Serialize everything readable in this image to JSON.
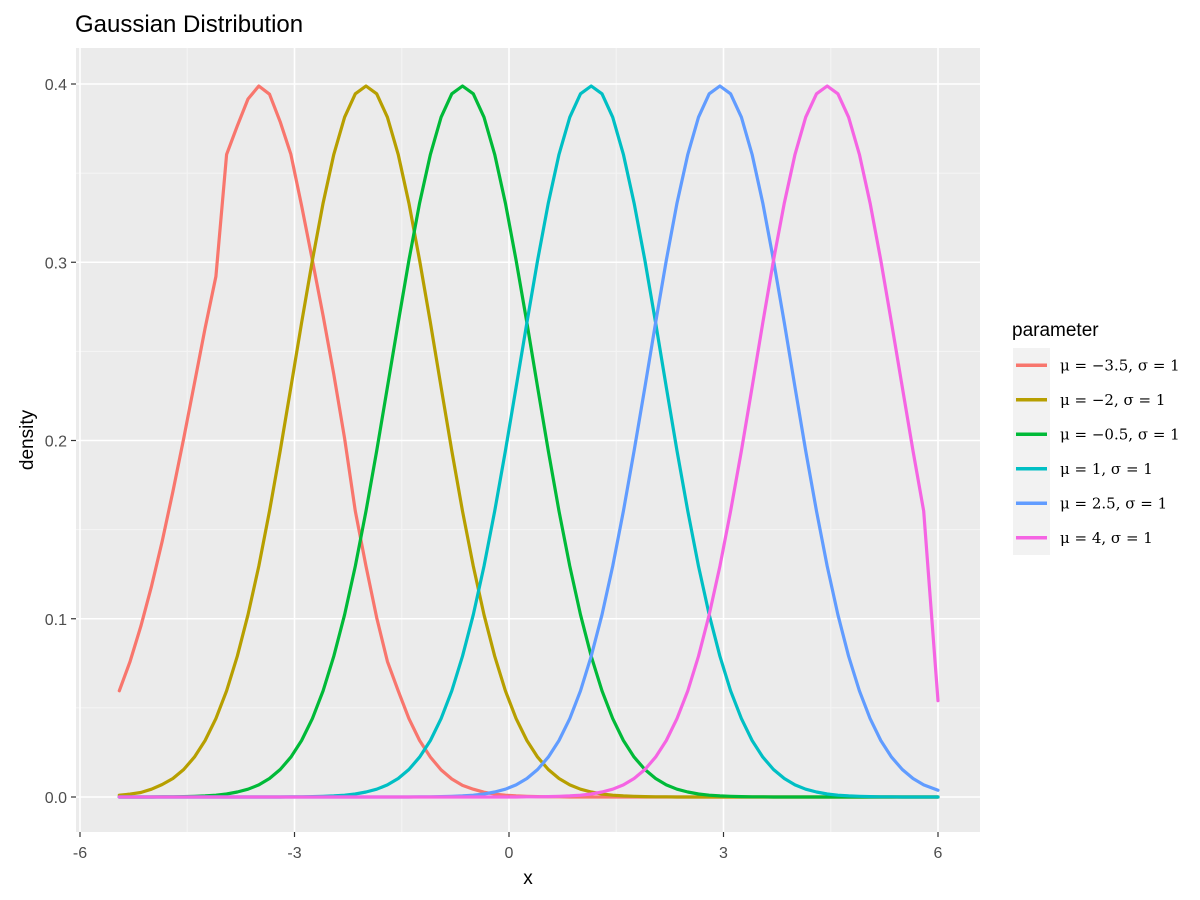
{
  "chart_data": {
    "type": "line",
    "title": "Gaussian Distribution",
    "xlabel": "x",
    "ylabel": "density",
    "xlim": [
      -5.45,
      6
    ],
    "ylim": [
      0,
      0.4
    ],
    "x_ticks": [
      -6,
      -3,
      0,
      3,
      6
    ],
    "x_tick_labels": [
      "-6",
      "-3",
      "0",
      "3",
      "6"
    ],
    "y_ticks": [
      0.0,
      0.1,
      0.2,
      0.3,
      0.4
    ],
    "y_tick_labels": [
      "0.0",
      "0.1",
      "0.2",
      "0.3",
      "0.4"
    ],
    "grid": true,
    "legend_position": "right",
    "legend_title": "parameter",
    "x": [
      -5.45,
      -5.3,
      -5.15,
      -5.0,
      -4.85,
      -4.7,
      -4.55,
      -4.4,
      -4.25,
      -4.1,
      -3.95,
      -3.8,
      -3.65,
      -3.5,
      -3.35,
      -3.2,
      -3.05,
      -2.9,
      -2.75,
      -2.6,
      -2.45,
      -2.3,
      -2.15,
      -2.0,
      -1.85,
      -1.7,
      -1.55,
      -1.4,
      -1.25,
      -1.1,
      -0.95,
      -0.8,
      -0.65,
      -0.5,
      -0.35,
      -0.2,
      -0.05,
      0.1,
      0.25,
      0.4,
      0.55,
      0.7,
      0.85,
      1.0,
      1.15,
      1.3,
      1.45,
      1.6,
      1.75,
      1.9,
      2.05,
      2.2,
      2.35,
      2.5,
      2.65,
      2.8,
      2.95,
      3.1,
      3.25,
      3.4,
      3.55,
      3.7,
      3.85,
      4.0,
      4.15,
      4.3,
      4.45,
      4.6,
      4.75,
      4.9,
      5.05,
      5.2,
      5.35,
      5.5,
      5.65,
      5.8,
      6.0
    ],
    "series": [
      {
        "name": "μ = −3.5, σ = 1",
        "color": "#F8766D",
        "values": [
          0.0596,
          0.0761,
          0.0957,
          0.1182,
          0.1435,
          0.1714,
          0.2012,
          0.232,
          0.263,
          0.292,
          0.3605,
          0.3765,
          0.3916,
          0.3989,
          0.3943,
          0.3788,
          0.3605,
          0.3317,
          0.3011,
          0.27,
          0.2371,
          0.2012,
          0.1604,
          0.1295,
          0.1006,
          0.0761,
          0.0596,
          0.044,
          0.0317,
          0.0224,
          0.0152,
          0.0101,
          0.0065,
          0.0044,
          0.0027,
          0.0016,
          0.001,
          0.0006,
          0.0004,
          0.0002,
          0.0001,
          0.0001,
          0.0,
          0.0,
          0.0,
          0.0,
          0.0,
          0.0,
          0.0,
          0.0,
          0.0,
          0.0,
          0.0,
          0.0,
          0.0,
          0.0,
          0.0,
          0.0,
          0.0,
          0.0,
          0.0,
          0.0,
          0.0,
          0.0,
          0.0,
          0.0,
          0.0,
          0.0,
          0.0,
          0.0,
          0.0,
          0.0,
          0.0,
          0.0,
          0.0,
          0.0,
          0.0
        ]
      },
      {
        "name": "μ = −2, σ = 1",
        "color": "#B79F00",
        "values": [
          0.001,
          0.0016,
          0.0025,
          0.0044,
          0.007,
          0.0104,
          0.0154,
          0.0224,
          0.0317,
          0.044,
          0.0596,
          0.079,
          0.1023,
          0.1295,
          0.1604,
          0.1942,
          0.2299,
          0.2661,
          0.3011,
          0.3332,
          0.3605,
          0.3814,
          0.3945,
          0.3989,
          0.3945,
          0.3814,
          0.3605,
          0.3332,
          0.3011,
          0.2661,
          0.2299,
          0.1942,
          0.1604,
          0.1295,
          0.1023,
          0.079,
          0.0596,
          0.044,
          0.0317,
          0.0224,
          0.0154,
          0.0104,
          0.0068,
          0.0044,
          0.0028,
          0.0017,
          0.001,
          0.0006,
          0.0004,
          0.0002,
          0.0001,
          0.0001,
          0.0,
          0.0,
          0.0,
          0.0,
          0.0,
          0.0,
          0.0,
          0.0,
          0.0,
          0.0,
          0.0,
          0.0,
          0.0,
          0.0,
          0.0,
          0.0,
          0.0,
          0.0,
          0.0,
          0.0,
          0.0,
          0.0,
          0.0,
          0.0,
          0.0
        ]
      },
      {
        "name": "μ = −0.5, σ = 1",
        "color": "#00BA38",
        "values": [
          0.0,
          0.0,
          0.0,
          0.0,
          0.0001,
          0.0001,
          0.0002,
          0.0004,
          0.0006,
          0.001,
          0.0017,
          0.0028,
          0.0044,
          0.0068,
          0.0104,
          0.0154,
          0.0224,
          0.0317,
          0.044,
          0.0596,
          0.079,
          0.1023,
          0.1295,
          0.1604,
          0.1942,
          0.2299,
          0.2661,
          0.3011,
          0.3332,
          0.3605,
          0.3814,
          0.3945,
          0.3989,
          0.3945,
          0.3814,
          0.3605,
          0.3332,
          0.3011,
          0.2661,
          0.2299,
          0.1942,
          0.1604,
          0.1295,
          0.1023,
          0.079,
          0.0596,
          0.044,
          0.0317,
          0.0224,
          0.0154,
          0.0104,
          0.0068,
          0.0044,
          0.0028,
          0.0017,
          0.001,
          0.0006,
          0.0004,
          0.0002,
          0.0001,
          0.0001,
          0.0,
          0.0,
          0.0,
          0.0,
          0.0,
          0.0,
          0.0,
          0.0,
          0.0,
          0.0,
          0.0,
          0.0,
          0.0,
          0.0,
          0.0,
          0.0
        ]
      },
      {
        "name": "μ = 1, σ = 1",
        "color": "#00BFC4",
        "values": [
          0.0,
          0.0,
          0.0,
          0.0,
          0.0,
          0.0,
          0.0,
          0.0,
          0.0,
          0.0,
          0.0,
          0.0,
          0.0,
          0.0,
          0.0,
          0.0,
          0.0001,
          0.0001,
          0.0002,
          0.0004,
          0.0006,
          0.001,
          0.0017,
          0.0028,
          0.0044,
          0.0068,
          0.0104,
          0.0154,
          0.0224,
          0.0317,
          0.044,
          0.0596,
          0.079,
          0.1023,
          0.1295,
          0.1604,
          0.1942,
          0.2299,
          0.2661,
          0.3011,
          0.3332,
          0.3605,
          0.3814,
          0.3945,
          0.3989,
          0.3945,
          0.3814,
          0.3605,
          0.3332,
          0.3011,
          0.2661,
          0.2299,
          0.1942,
          0.1604,
          0.1295,
          0.1023,
          0.079,
          0.0596,
          0.044,
          0.0317,
          0.0224,
          0.0154,
          0.0104,
          0.0068,
          0.0044,
          0.0028,
          0.0017,
          0.001,
          0.0006,
          0.0004,
          0.0002,
          0.0001,
          0.0001,
          0.0,
          0.0,
          0.0,
          0.0
        ]
      },
      {
        "name": "μ = 2.5, σ = 1",
        "color": "#619CFF",
        "values": [
          0.0,
          0.0,
          0.0,
          0.0,
          0.0,
          0.0,
          0.0,
          0.0,
          0.0,
          0.0,
          0.0,
          0.0,
          0.0,
          0.0,
          0.0,
          0.0,
          0.0,
          0.0,
          0.0,
          0.0,
          0.0,
          0.0,
          0.0,
          0.0,
          0.0,
          0.0,
          0.0,
          0.0,
          0.0001,
          0.0001,
          0.0002,
          0.0004,
          0.0006,
          0.001,
          0.0017,
          0.0028,
          0.0044,
          0.0068,
          0.0104,
          0.0154,
          0.0224,
          0.0317,
          0.044,
          0.0596,
          0.079,
          0.1023,
          0.1295,
          0.1604,
          0.1942,
          0.2299,
          0.2661,
          0.3011,
          0.3332,
          0.3605,
          0.3814,
          0.3945,
          0.3989,
          0.3945,
          0.3814,
          0.3605,
          0.3332,
          0.3011,
          0.2661,
          0.2299,
          0.1942,
          0.1604,
          0.1295,
          0.1023,
          0.079,
          0.0596,
          0.044,
          0.0317,
          0.0224,
          0.0154,
          0.0104,
          0.0068,
          0.0038
        ]
      },
      {
        "name": "μ = 4, σ = 1",
        "color": "#F564E3",
        "values": [
          0.0,
          0.0,
          0.0,
          0.0,
          0.0,
          0.0,
          0.0,
          0.0,
          0.0,
          0.0,
          0.0,
          0.0,
          0.0,
          0.0,
          0.0,
          0.0,
          0.0,
          0.0,
          0.0,
          0.0,
          0.0,
          0.0,
          0.0,
          0.0,
          0.0,
          0.0,
          0.0,
          0.0,
          0.0,
          0.0,
          0.0,
          0.0,
          0.0,
          0.0,
          0.0,
          0.0,
          0.0,
          0.0,
          0.0001,
          0.0001,
          0.0002,
          0.0004,
          0.0006,
          0.001,
          0.0017,
          0.0028,
          0.0044,
          0.0068,
          0.0104,
          0.0154,
          0.0224,
          0.0317,
          0.044,
          0.0596,
          0.079,
          0.1023,
          0.1295,
          0.1604,
          0.1942,
          0.2299,
          0.2661,
          0.3011,
          0.3332,
          0.3605,
          0.3814,
          0.3945,
          0.3989,
          0.3945,
          0.3814,
          0.3605,
          0.3332,
          0.3011,
          0.2661,
          0.2299,
          0.1942,
          0.1604,
          0.054
        ]
      }
    ]
  }
}
